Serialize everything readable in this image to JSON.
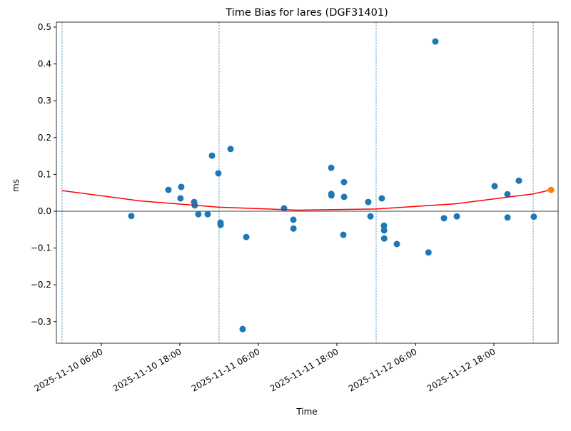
{
  "chart_data": {
    "type": "scatter",
    "title": "Time Bias for lares (DGF31401)",
    "xlabel": "Time",
    "ylabel": "ms",
    "xlim": [
      "2025-11-09 23:08",
      "2025-11-13 03:49"
    ],
    "ylim": [
      -0.3585,
      0.5136
    ],
    "xticks": [
      "2025-11-10 06:00",
      "2025-11-10 18:00",
      "2025-11-11 06:00",
      "2025-11-11 18:00",
      "2025-11-12 06:00",
      "2025-11-12 18:00"
    ],
    "yticks": [
      {
        "value": -0.3,
        "label": "−0.3"
      },
      {
        "value": -0.2,
        "label": "−0.2"
      },
      {
        "value": -0.1,
        "label": "−0.1"
      },
      {
        "value": 0,
        "label": "0.0"
      },
      0.1,
      0.2,
      0.3,
      0.4,
      0.5
    ],
    "hline": 0,
    "vlines": [
      "2025-11-10 00:00",
      "2025-11-11 00:00",
      "2025-11-12 00:00",
      "2025-11-13 00:00"
    ],
    "vline_color": "#1f77b4",
    "series": [
      {
        "kind": "scatter",
        "color": "#1f77b4",
        "x": [
          "2025-11-10 10:35",
          "2025-11-10 16:15",
          "2025-11-10 18:06",
          "2025-11-10 18:13",
          "2025-11-10 20:11",
          "2025-11-10 20:17",
          "2025-11-10 20:50",
          "2025-11-10 22:15",
          "2025-11-10 22:55",
          "2025-11-10 23:53",
          "2025-11-11 00:13",
          "2025-11-11 00:14",
          "2025-11-11 01:45",
          "2025-11-11 03:36",
          "2025-11-11 04:09",
          "2025-11-11 09:56",
          "2025-11-11 11:21",
          "2025-11-11 11:22",
          "2025-11-11 17:08",
          "2025-11-11 17:09",
          "2025-11-11 17:10",
          "2025-11-11 18:59",
          "2025-11-11 19:05",
          "2025-11-11 19:06",
          "2025-11-11 22:48",
          "2025-11-11 23:08",
          "2025-11-12 00:52",
          "2025-11-12 01:12",
          "2025-11-12 01:13",
          "2025-11-12 01:14",
          "2025-11-12 03:10",
          "2025-11-12 08:00",
          "2025-11-12 09:03",
          "2025-11-12 10:22",
          "2025-11-12 12:20",
          "2025-11-12 18:06",
          "2025-11-12 20:04",
          "2025-11-12 20:05",
          "2025-11-12 21:49",
          "2025-11-13 00:06"
        ],
        "values": [
          -0.013,
          0.058,
          0.035,
          0.066,
          0.025,
          0.016,
          -0.008,
          -0.008,
          0.151,
          0.103,
          -0.031,
          -0.037,
          0.169,
          -0.32,
          -0.07,
          0.008,
          -0.023,
          -0.047,
          0.118,
          0.047,
          0.043,
          -0.064,
          0.079,
          0.039,
          0.025,
          -0.014,
          0.035,
          -0.039,
          -0.052,
          -0.074,
          -0.089,
          -0.112,
          0.461,
          -0.019,
          -0.014,
          0.068,
          0.046,
          -0.017,
          0.083,
          -0.015
        ]
      },
      {
        "kind": "line",
        "color": "#ff0000",
        "x": [
          "2025-11-10 00:00",
          "2025-11-10 12:00",
          "2025-11-11 00:00",
          "2025-11-11 12:00",
          "2025-11-12 00:00",
          "2025-11-12 12:00",
          "2025-11-13 00:00",
          "2025-11-13 02:44"
        ],
        "values": [
          0.056,
          0.028,
          0.011,
          0.003,
          0.006,
          0.02,
          0.047,
          0.058
        ]
      },
      {
        "kind": "scatter",
        "color": "#ff7f0e",
        "x": [
          "2025-11-13 02:44"
        ],
        "values": [
          0.058
        ]
      }
    ]
  }
}
